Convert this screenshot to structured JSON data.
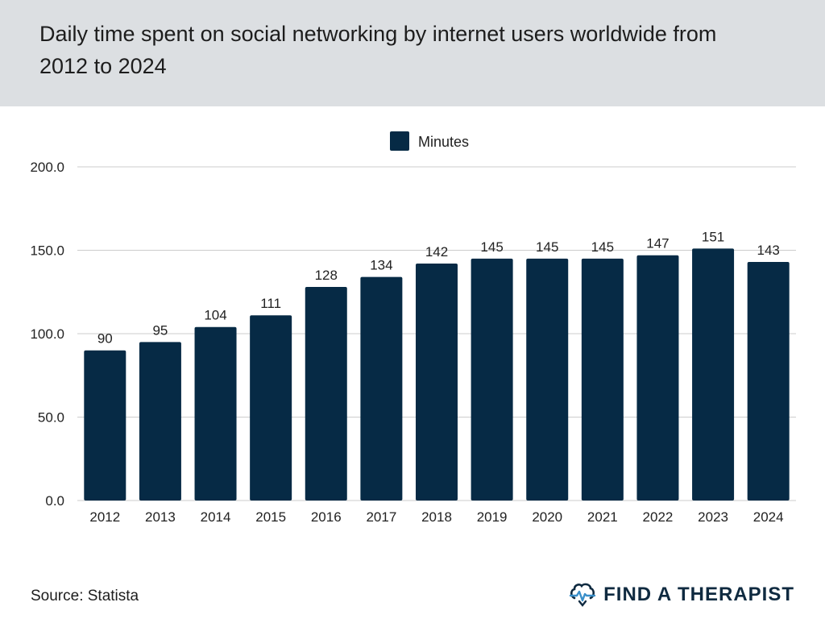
{
  "header": {
    "title": "Daily time spent on social networking by internet users worldwide from 2012 to 2024"
  },
  "footer": {
    "source": "Source: Statista",
    "brand": "FIND A THERAPIST",
    "brand_icon": "brain-heartbeat-icon"
  },
  "colors": {
    "bar": "#062a45",
    "header_bg": "#dcdfe2",
    "grid": "#cccccc",
    "brand": "#0f2a40",
    "brand_accent": "#3a8fc9"
  },
  "chart_data": {
    "type": "bar",
    "categories": [
      "2012",
      "2013",
      "2014",
      "2015",
      "2016",
      "2017",
      "2018",
      "2019",
      "2020",
      "2021",
      "2022",
      "2023",
      "2024"
    ],
    "series": [
      {
        "name": "Minutes",
        "values": [
          90,
          95,
          104,
          111,
          128,
          134,
          142,
          145,
          145,
          145,
          147,
          151,
          143
        ]
      }
    ],
    "ylim": [
      0,
      200
    ],
    "yticks": [
      "0.0",
      "50.0",
      "100.0",
      "150.0",
      "200.0"
    ],
    "ytick_values": [
      0,
      50,
      100,
      150,
      200
    ],
    "grid": true,
    "legend_position": "top-center",
    "xlabel": "",
    "ylabel": ""
  }
}
